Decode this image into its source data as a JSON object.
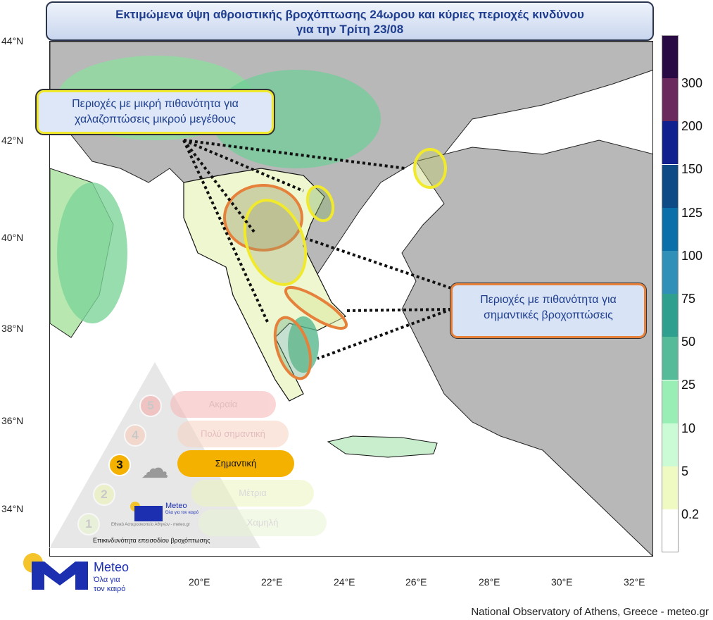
{
  "title": {
    "line1": "Εκτιμώμενα ύψη αθροιστικής βροχόπτωσης 24ωρου και κύριες περιοχές κινδύνου",
    "line2": "για την Τρίτη 23/08"
  },
  "callouts": {
    "hail": {
      "line1": "Περιοχές με μικρή πιθανότητα για",
      "line2": "χαλαζοπτώσεις μικρού μεγέθους",
      "color": "#f1ea2c"
    },
    "rain": {
      "line1": "Περιοχές με πιθανότητα για",
      "line2": "σημαντικές βροχοπτώσεις",
      "color": "#e6813c"
    }
  },
  "axes": {
    "lat": [
      "44°N",
      "42°N",
      "40°N",
      "38°N",
      "36°N",
      "34°N"
    ],
    "lon": [
      "20°E",
      "22°E",
      "24°E",
      "26°E",
      "28°E",
      "30°E",
      "32°E"
    ]
  },
  "colorbar": {
    "labels": [
      "300",
      "200",
      "150",
      "125",
      "100",
      "75",
      "50",
      "25",
      "10",
      "5",
      "0.2"
    ],
    "colors": [
      "#2a0a45",
      "#6b2a5e",
      "#10208f",
      "#0d4a86",
      "#0b6faa",
      "#3090b8",
      "#2fa090",
      "#55bb99",
      "#98eeb4",
      "#cafbd4",
      "#eefac2",
      "#ffffff"
    ]
  },
  "risk_inset": {
    "levels": [
      {
        "num": "5",
        "label": "Ακραία",
        "color": "#f5b4b4"
      },
      {
        "num": "4",
        "label": "Πολύ σημαντική",
        "color": "#f7d2c2"
      },
      {
        "num": "3",
        "label": "Σημαντική",
        "color": "#f5b100",
        "active": true
      },
      {
        "num": "2",
        "label": "Μέτρια",
        "color": "#eef5c0"
      },
      {
        "num": "1",
        "label": "Χαμηλή",
        "color": "#eaf5d4"
      }
    ],
    "logo_name": "Meteo",
    "logo_tagline1": "Όλα για",
    "logo_tagline2": "τον καιρό",
    "org_line": "Εθνικό Αστεροσκοπείο Αθηνών - meteo.gr",
    "caption": "Επικινδυνότητα επεισοδίου βροχόπτωσης"
  },
  "logo": {
    "name": "Meteo",
    "tagline1": "Όλα για",
    "tagline2": "τον καιρό"
  },
  "credit": "National Observatory of Athens, Greece - meteo.gr"
}
